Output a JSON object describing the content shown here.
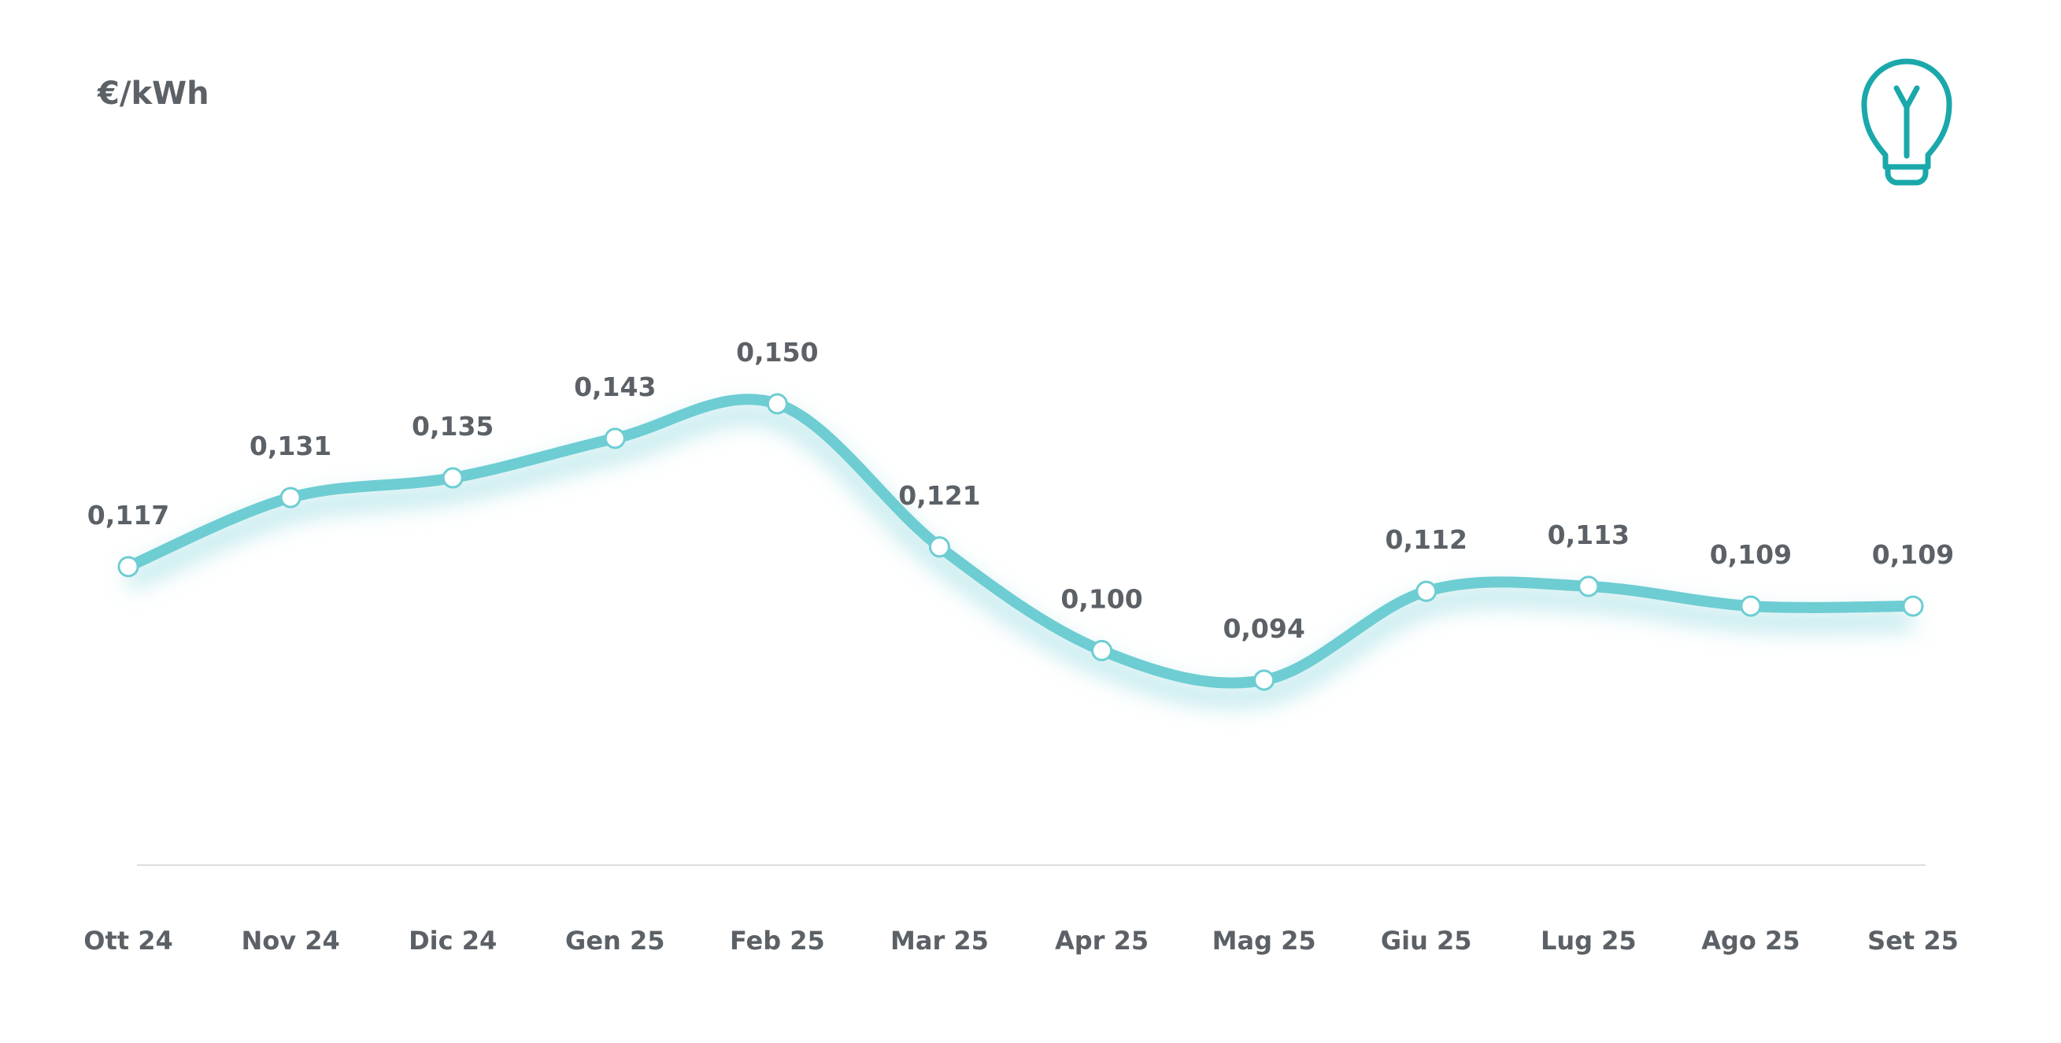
{
  "colors": {
    "line": "#6dcdd2",
    "text": "#5b6166",
    "axis": "#dddddd",
    "icon": "#1aa8aa"
  },
  "icon": "lightbulb-icon",
  "chart_data": {
    "type": "line",
    "ylabel": "€/kWh",
    "categories": [
      "Ott 24",
      "Nov 24",
      "Dic 24",
      "Gen 25",
      "Feb 25",
      "Mar 25",
      "Apr 25",
      "Mag 25",
      "Giu 25",
      "Lug 25",
      "Ago 25",
      "Set 25"
    ],
    "values": [
      0.117,
      0.131,
      0.135,
      0.143,
      0.15,
      0.121,
      0.1,
      0.094,
      0.112,
      0.113,
      0.109,
      0.109
    ],
    "labels": [
      "0,117",
      "0,131",
      "0,135",
      "0,143",
      "0,150",
      "0,121",
      "0,100",
      "0,094",
      "0,112",
      "0,113",
      "0,109",
      "0,109"
    ],
    "grid": false,
    "legend": "none"
  }
}
